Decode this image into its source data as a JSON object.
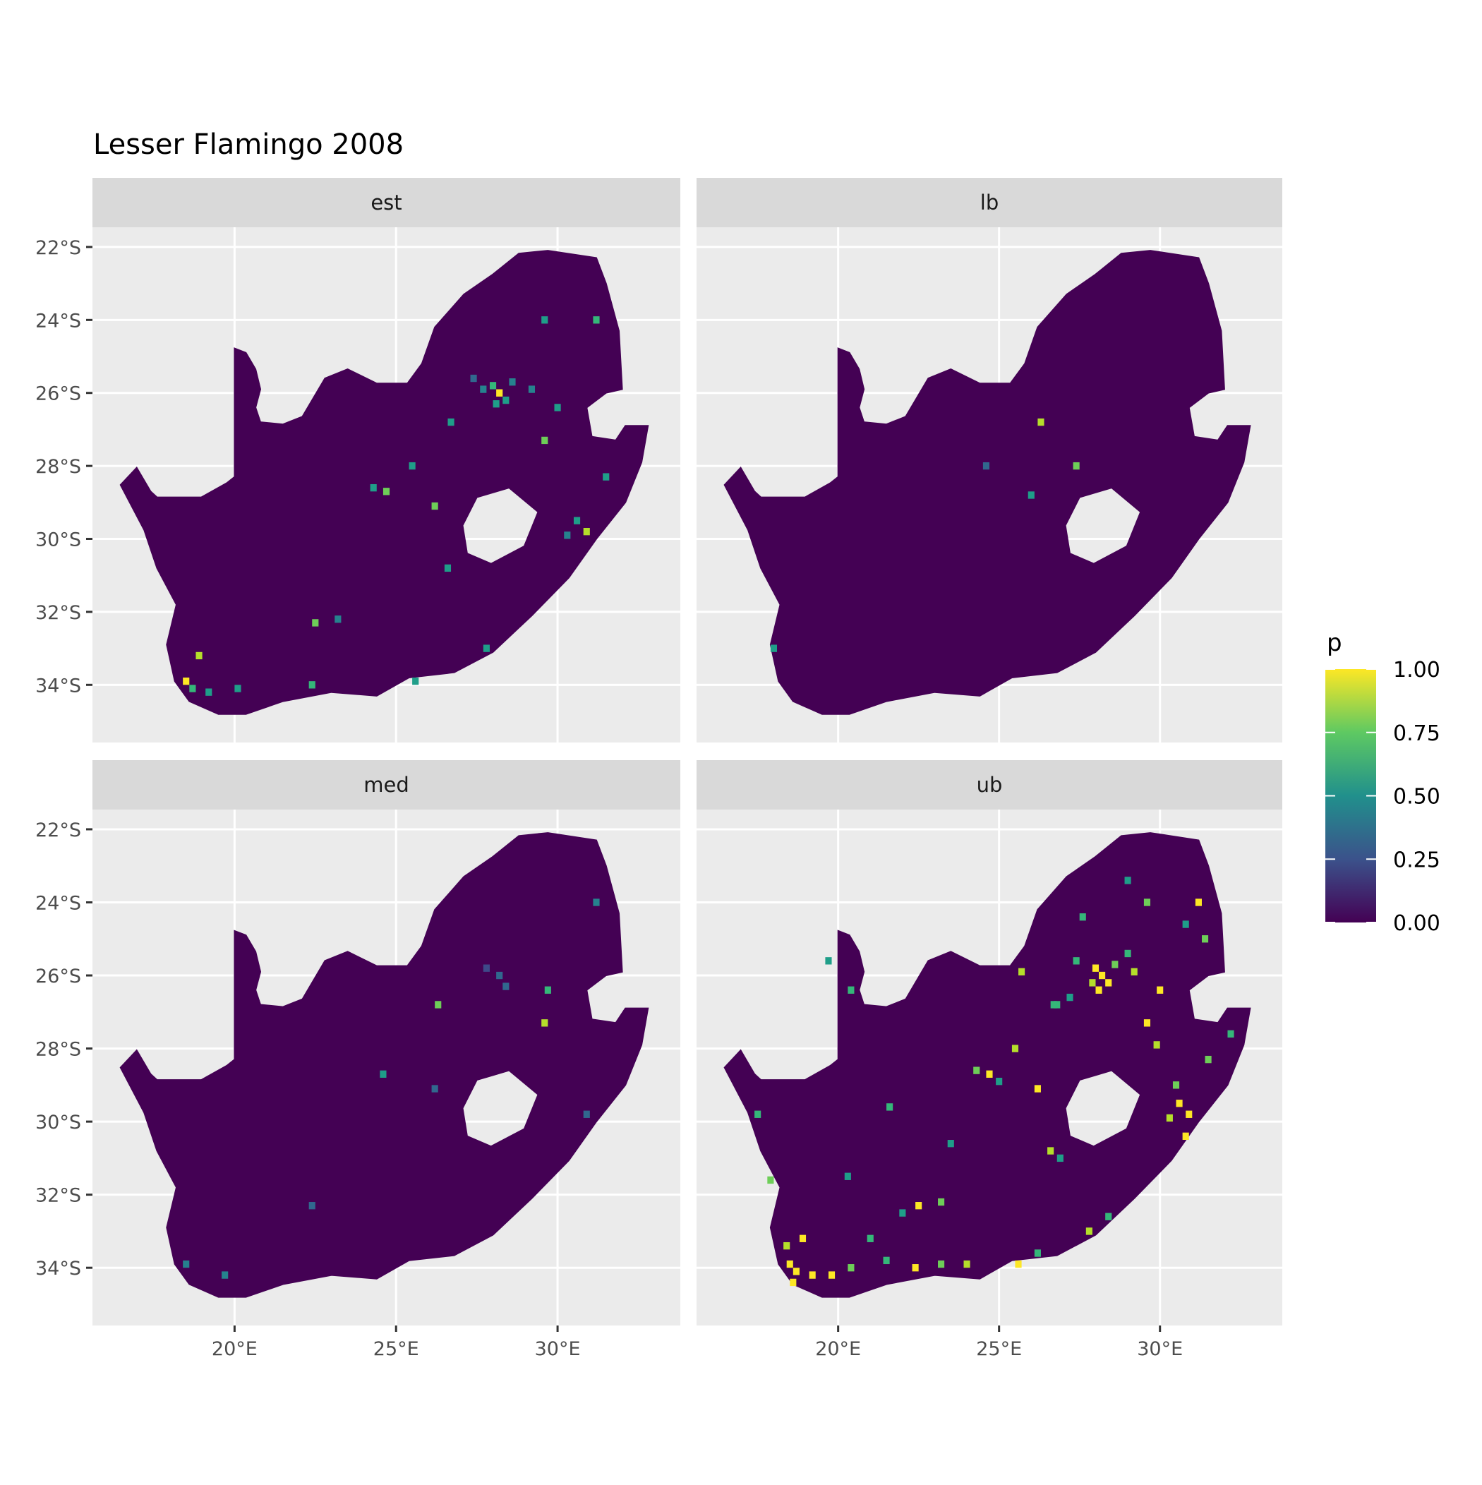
{
  "chart_data": {
    "type": "heatmap",
    "title": "Lesser Flamingo 2008",
    "xlabel": "",
    "ylabel": "",
    "x_ticks": [
      "20°E",
      "25°E",
      "30°E"
    ],
    "x_tick_values": [
      20,
      25,
      30
    ],
    "y_ticks": [
      "22°S",
      "24°S",
      "26°S",
      "28°S",
      "30°S",
      "32°S",
      "34°S"
    ],
    "y_tick_values": [
      22,
      24,
      26,
      28,
      30,
      32,
      34
    ],
    "xlim": [
      15.6,
      33.8
    ],
    "ylim": [
      21.46,
      35.58
    ],
    "grid": true,
    "legend": {
      "title": "p",
      "placement": "right",
      "ticks": [
        "1.00",
        "0.75",
        "0.50",
        "0.25",
        "0.00"
      ],
      "tick_values": [
        1,
        0.75,
        0.5,
        0.25,
        0
      ],
      "colors": [
        "#440154",
        "#3b528b",
        "#21908c",
        "#5ec962",
        "#fde725"
      ]
    },
    "background_value": 0.0,
    "region_outline": [
      [
        16.47,
        28.52
      ],
      [
        16.97,
        28.05
      ],
      [
        17.4,
        28.7
      ],
      [
        17.6,
        28.86
      ],
      [
        18.97,
        28.86
      ],
      [
        19.76,
        28.47
      ],
      [
        20,
        28.3
      ],
      [
        20,
        24.78
      ],
      [
        20.35,
        24.9
      ],
      [
        20.65,
        25.35
      ],
      [
        20.8,
        25.9
      ],
      [
        20.65,
        26.4
      ],
      [
        20.8,
        26.8
      ],
      [
        21.5,
        26.86
      ],
      [
        22.1,
        26.65
      ],
      [
        22.8,
        25.6
      ],
      [
        23.5,
        25.35
      ],
      [
        24.4,
        25.74
      ],
      [
        25.35,
        25.74
      ],
      [
        25.8,
        25.2
      ],
      [
        26.2,
        24.2
      ],
      [
        27.1,
        23.3
      ],
      [
        28,
        22.75
      ],
      [
        28.8,
        22.18
      ],
      [
        29.7,
        22.1
      ],
      [
        31.2,
        22.3
      ],
      [
        31.5,
        23
      ],
      [
        31.9,
        24.3
      ],
      [
        32,
        25.9
      ],
      [
        31.5,
        26.0
      ],
      [
        30.9,
        26.4
      ],
      [
        31.06,
        27.2
      ],
      [
        31.8,
        27.3
      ],
      [
        32.1,
        26.9
      ],
      [
        32.8,
        26.9
      ],
      [
        32.6,
        27.9
      ],
      [
        32.1,
        29
      ],
      [
        31.2,
        30.0
      ],
      [
        30.35,
        31.06
      ],
      [
        29.2,
        32.1
      ],
      [
        28,
        33.1
      ],
      [
        26.8,
        33.66
      ],
      [
        25.4,
        33.8
      ],
      [
        24.4,
        34.3
      ],
      [
        23,
        34.2
      ],
      [
        21.5,
        34.45
      ],
      [
        20.35,
        34.8
      ],
      [
        19.5,
        34.8
      ],
      [
        18.6,
        34.45
      ],
      [
        18.15,
        33.9
      ],
      [
        17.9,
        32.9
      ],
      [
        18.2,
        31.8
      ],
      [
        17.6,
        30.8
      ],
      [
        17.2,
        29.75
      ]
    ],
    "hole_outline": [
      [
        27.06,
        29.63
      ],
      [
        27.5,
        28.86
      ],
      [
        28.5,
        28.6
      ],
      [
        29.4,
        29.26
      ],
      [
        28.97,
        30.2
      ],
      [
        27.94,
        30.68
      ],
      [
        27.2,
        30.4
      ]
    ],
    "facets": [
      {
        "label": "est",
        "cells": [
          [
            28.2,
            26.0,
            0.95
          ],
          [
            28.0,
            25.8,
            0.7
          ],
          [
            28.4,
            26.2,
            0.6
          ],
          [
            28.1,
            26.3,
            0.5
          ],
          [
            27.7,
            25.9,
            0.45
          ],
          [
            28.6,
            25.7,
            0.4
          ],
          [
            27.4,
            25.6,
            0.35
          ],
          [
            29.2,
            25.9,
            0.4
          ],
          [
            30.0,
            26.4,
            0.5
          ],
          [
            29.6,
            27.3,
            0.8
          ],
          [
            30.9,
            29.8,
            0.9
          ],
          [
            30.6,
            29.5,
            0.6
          ],
          [
            30.3,
            29.9,
            0.45
          ],
          [
            31.2,
            24.0,
            0.7
          ],
          [
            29.6,
            24.0,
            0.5
          ],
          [
            26.2,
            29.1,
            0.8
          ],
          [
            26.6,
            30.8,
            0.6
          ],
          [
            24.7,
            28.7,
            0.75
          ],
          [
            24.3,
            28.6,
            0.5
          ],
          [
            22.5,
            32.3,
            0.8
          ],
          [
            23.2,
            32.2,
            0.4
          ],
          [
            18.5,
            33.9,
            0.95
          ],
          [
            18.7,
            34.1,
            0.7
          ],
          [
            18.9,
            33.2,
            0.85
          ],
          [
            19.2,
            34.2,
            0.5
          ],
          [
            20.1,
            34.1,
            0.6
          ],
          [
            22.4,
            34.0,
            0.7
          ],
          [
            25.6,
            33.9,
            0.55
          ],
          [
            27.8,
            33.0,
            0.5
          ],
          [
            25.5,
            28.0,
            0.6
          ],
          [
            26.7,
            26.8,
            0.5
          ],
          [
            31.5,
            28.3,
            0.5
          ]
        ]
      },
      {
        "label": "lb",
        "cells": [
          [
            26.3,
            26.8,
            0.85
          ],
          [
            27.4,
            28.0,
            0.8
          ],
          [
            26.0,
            28.8,
            0.5
          ],
          [
            24.6,
            28.0,
            0.3
          ],
          [
            18.0,
            33.0,
            0.6
          ]
        ]
      },
      {
        "label": "med",
        "cells": [
          [
            28.2,
            26.0,
            0.35
          ],
          [
            28.4,
            26.3,
            0.3
          ],
          [
            27.8,
            25.8,
            0.25
          ],
          [
            29.7,
            26.4,
            0.7
          ],
          [
            29.6,
            27.3,
            0.9
          ],
          [
            26.3,
            26.8,
            0.8
          ],
          [
            24.6,
            28.7,
            0.6
          ],
          [
            26.2,
            29.1,
            0.3
          ],
          [
            30.9,
            29.8,
            0.35
          ],
          [
            31.2,
            24.0,
            0.4
          ],
          [
            18.5,
            33.9,
            0.4
          ],
          [
            22.4,
            32.3,
            0.3
          ],
          [
            19.7,
            34.2,
            0.4
          ]
        ]
      },
      {
        "label": "ub",
        "cells": [
          [
            28.2,
            26.0,
            1
          ],
          [
            28.0,
            25.8,
            1
          ],
          [
            28.4,
            26.2,
            1
          ],
          [
            28.1,
            26.4,
            1
          ],
          [
            27.9,
            26.2,
            0.9
          ],
          [
            28.6,
            25.7,
            0.8
          ],
          [
            27.4,
            25.6,
            0.7
          ],
          [
            27.2,
            26.6,
            0.6
          ],
          [
            26.8,
            26.8,
            0.65
          ],
          [
            29.2,
            25.9,
            0.9
          ],
          [
            29.0,
            25.4,
            0.7
          ],
          [
            30.0,
            26.4,
            1
          ],
          [
            29.6,
            27.3,
            1
          ],
          [
            29.9,
            27.9,
            0.9
          ],
          [
            30.9,
            29.8,
            1
          ],
          [
            30.6,
            29.5,
            1
          ],
          [
            30.3,
            29.9,
            0.9
          ],
          [
            30.8,
            30.4,
            1
          ],
          [
            30.5,
            29.0,
            0.8
          ],
          [
            31.2,
            24.0,
            1
          ],
          [
            31.4,
            25.0,
            0.8
          ],
          [
            30.8,
            24.6,
            0.6
          ],
          [
            29.6,
            24.0,
            0.8
          ],
          [
            29.0,
            23.4,
            0.6
          ],
          [
            27.6,
            24.4,
            0.7
          ],
          [
            26.2,
            29.1,
            1
          ],
          [
            26.6,
            30.8,
            0.9
          ],
          [
            26.9,
            31.0,
            0.6
          ],
          [
            24.7,
            28.7,
            1
          ],
          [
            24.3,
            28.6,
            0.8
          ],
          [
            25.0,
            28.9,
            0.6
          ],
          [
            22.5,
            32.3,
            1
          ],
          [
            23.2,
            32.2,
            0.8
          ],
          [
            22.0,
            32.5,
            0.6
          ],
          [
            18.5,
            33.9,
            1
          ],
          [
            18.7,
            34.1,
            1
          ],
          [
            18.9,
            33.2,
            1
          ],
          [
            18.4,
            33.4,
            0.9
          ],
          [
            18.6,
            34.4,
            1
          ],
          [
            19.2,
            34.2,
            1
          ],
          [
            19.8,
            34.2,
            1
          ],
          [
            20.4,
            34.0,
            0.8
          ],
          [
            21.5,
            33.8,
            0.7
          ],
          [
            22.4,
            34.0,
            1
          ],
          [
            23.2,
            33.9,
            0.8
          ],
          [
            24.0,
            33.9,
            0.9
          ],
          [
            25.6,
            33.9,
            1
          ],
          [
            26.2,
            33.6,
            0.7
          ],
          [
            27.8,
            33.0,
            0.9
          ],
          [
            28.4,
            32.6,
            0.7
          ],
          [
            25.5,
            28.0,
            0.9
          ],
          [
            26.7,
            26.8,
            0.7
          ],
          [
            31.5,
            28.3,
            0.8
          ],
          [
            32.2,
            27.6,
            0.7
          ],
          [
            19.7,
            25.6,
            0.6
          ],
          [
            20.4,
            26.4,
            0.7
          ],
          [
            21.6,
            29.6,
            0.7
          ],
          [
            23.5,
            30.6,
            0.6
          ],
          [
            20.3,
            31.5,
            0.6
          ],
          [
            21.0,
            33.2,
            0.7
          ],
          [
            17.9,
            31.6,
            0.8
          ],
          [
            17.5,
            29.8,
            0.7
          ],
          [
            25.7,
            25.9,
            0.9
          ]
        ]
      }
    ]
  }
}
